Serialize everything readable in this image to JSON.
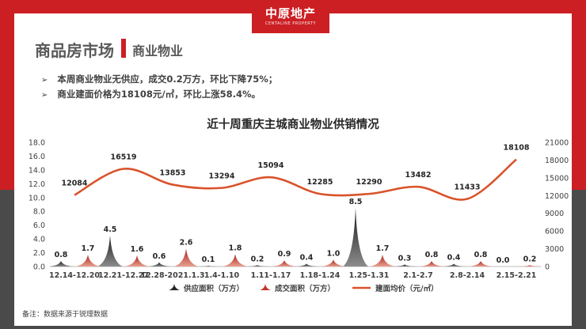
{
  "logo": {
    "name": "中原地产",
    "sub": "CENTALINE PROPERTY"
  },
  "header": {
    "title": "商品房市场",
    "subtitle": "商业物业"
  },
  "bullets": [
    "本周商业物业无供应，成交0.2万方，环比下降75%；",
    "商业建面价格为18108元/㎡，环比上涨58.4%。"
  ],
  "footnote": "备注：数据来源于锐理数据",
  "colors": {
    "red": "#cc1f24",
    "gray": "#4a4a4a",
    "supply": "#262626",
    "deal": "#c0392b",
    "line": "#d9532b"
  },
  "chart_data": {
    "type": "area",
    "title": "近十周重庆主城商业物业供销情况",
    "categories": [
      "12.14-12.20",
      "12.21-12.27",
      "12.28-2021.1.3",
      "1.4-1.10",
      "1.11-1.17",
      "1.18-1.24",
      "1.25-1.31",
      "2.1-2.7",
      "2.8-2.14",
      "2.15-2.21"
    ],
    "series": [
      {
        "name": "供应面积（万方）",
        "axis": "left",
        "values": [
          0.8,
          4.5,
          0.6,
          0.1,
          0.2,
          0.4,
          8.5,
          0.3,
          0.4,
          0.0
        ]
      },
      {
        "name": "成交面积（万方）",
        "axis": "left",
        "values": [
          1.7,
          1.6,
          2.6,
          1.8,
          0.9,
          1.0,
          1.7,
          0.8,
          0.8,
          0.2
        ]
      },
      {
        "name": "建面均价（元/㎡）",
        "axis": "right",
        "values": [
          12084,
          16519,
          13853,
          13294,
          15094,
          12285,
          12290,
          13482,
          11433,
          18108
        ]
      }
    ],
    "left_axis": {
      "min": 0,
      "max": 18,
      "step": 2,
      "ticks": [
        "0.0",
        "2.0",
        "4.0",
        "6.0",
        "8.0",
        "10.0",
        "12.0",
        "14.0",
        "16.0",
        "18.0"
      ]
    },
    "right_axis": {
      "min": 0,
      "max": 21000,
      "step": 3000,
      "ticks": [
        "0",
        "3000",
        "6000",
        "9000",
        "12000",
        "15000",
        "18000",
        "21000"
      ]
    },
    "data_labels": {
      "supply": [
        "0.8",
        "4.5",
        "0.6",
        "0.1",
        "0.2",
        "0.4",
        "8.5",
        "0.3",
        "0.4",
        "0.0"
      ],
      "deal": [
        "1.7",
        "1.6",
        "2.6",
        "1.8",
        "0.9",
        "1.0",
        "1.7",
        "0.8",
        "0.8",
        "0.2"
      ],
      "price": [
        "12084",
        "16519",
        "13853",
        "13294",
        "15094",
        "12285",
        "12290",
        "13482",
        "11433",
        "18108"
      ]
    },
    "legend_position": "bottom"
  }
}
